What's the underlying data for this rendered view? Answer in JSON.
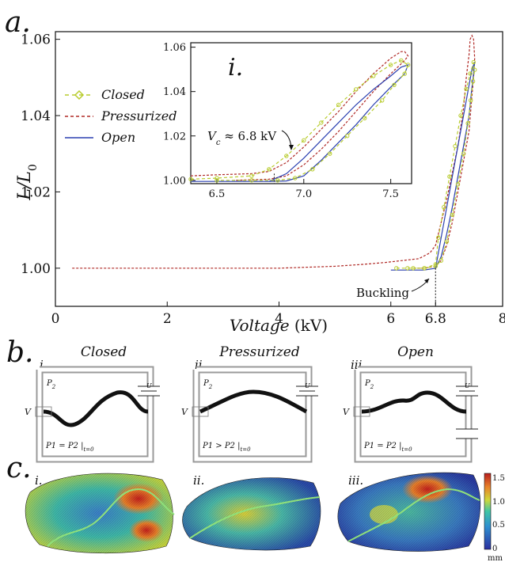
{
  "panel_a": {
    "label": "a.",
    "legend": [
      {
        "label": "Closed",
        "color": "#b8cc2e",
        "style": "diamond-dashed"
      },
      {
        "label": "Pressurized",
        "color": "#b02a26",
        "style": "dashed"
      },
      {
        "label": "Open",
        "color": "#2a3fb0",
        "style": "solid"
      }
    ],
    "annotation": "Buckling"
  },
  "inset": {
    "label": "i.",
    "annotation_var": "V",
    "annotation_sub": "c",
    "annotation_rest": " ≈ 6.8 kV"
  },
  "panel_b": {
    "label": "b.",
    "items": [
      {
        "numeral": "i.",
        "title": "Closed",
        "p_label": "P",
        "p_sub": "2",
        "v_label": "V",
        "cond_main": "P1 = P2",
        "cond_sub": "t=0",
        "valve": "U"
      },
      {
        "numeral": "ii.",
        "title": "Pressurized",
        "p_label": "P",
        "p_sub": "2",
        "v_label": "V",
        "cond_main": "P1 > P2",
        "cond_sub": "t=0",
        "valve": "U"
      },
      {
        "numeral": "iii.",
        "title": "Open",
        "p_label": "P",
        "p_sub": "2",
        "v_label": "V",
        "cond_main": "P1 = P2",
        "cond_sub": "t=0",
        "valve": "U"
      }
    ]
  },
  "panel_c": {
    "label": "c.",
    "numerals": [
      "i.",
      "ii.",
      "iii."
    ],
    "colorbar": {
      "ticks": [
        "1.5",
        "1.0",
        "0.5",
        "0"
      ],
      "unit": "mm"
    }
  },
  "chart_data": [
    {
      "type": "line",
      "xlabel_var": "Voltage",
      "xlabel_unit": " (kV)",
      "ylabel_var": "L/L",
      "ylabel_sub": "0",
      "xlim": [
        0,
        8
      ],
      "ylim": [
        0.99,
        1.062
      ],
      "xticks": [
        {
          "v": 0,
          "label": "0"
        },
        {
          "v": 2,
          "label": "2"
        },
        {
          "v": 4,
          "label": "4"
        },
        {
          "v": 6,
          "label": "6"
        },
        {
          "v": 6.8,
          "label": "6.8"
        },
        {
          "v": 8,
          "label": "8"
        }
      ],
      "yticks": [
        {
          "v": 1.0,
          "label": "1.00"
        },
        {
          "v": 1.02,
          "label": "1.02"
        },
        {
          "v": 1.04,
          "label": "1.04"
        },
        {
          "v": 1.06,
          "label": "1.06"
        }
      ],
      "series": [
        {
          "name": "Pressurized",
          "color": "#b02a26",
          "x": [
            0.3,
            1.0,
            2.0,
            3.0,
            4.0,
            5.0,
            5.5,
            5.9,
            6.2,
            6.5,
            6.7,
            6.8,
            6.9,
            7.0,
            7.1,
            7.2,
            7.3,
            7.35,
            7.4,
            7.42,
            7.45,
            7.48,
            7.5,
            7.48,
            7.45,
            7.4,
            7.3,
            7.2,
            7.1,
            7.0,
            6.9,
            6.8,
            6.6,
            6.4
          ],
          "y": [
            1.0,
            1.0,
            1.0,
            1.0,
            1.0,
            1.0005,
            1.001,
            1.0015,
            1.002,
            1.0025,
            1.004,
            1.006,
            1.012,
            1.018,
            1.025,
            1.032,
            1.042,
            1.05,
            1.056,
            1.06,
            1.061,
            1.06,
            1.055,
            1.05,
            1.045,
            1.036,
            1.028,
            1.02,
            1.012,
            1.006,
            1.002,
            1.0005,
            1.0,
            1.0
          ]
        },
        {
          "name": "Open",
          "color": "#2a3fb0",
          "x": [
            6.0,
            6.3,
            6.6,
            6.8,
            6.9,
            7.0,
            7.1,
            7.2,
            7.3,
            7.4,
            7.45,
            7.5,
            7.48,
            7.44,
            7.4,
            7.3,
            7.2,
            7.1,
            7.0,
            6.9,
            6.8,
            6.6,
            6.3,
            6.0
          ],
          "y": [
            0.9995,
            0.9995,
            0.9995,
            1.0,
            1.008,
            1.016,
            1.024,
            1.032,
            1.04,
            1.048,
            1.052,
            1.054,
            1.051,
            1.046,
            1.04,
            1.032,
            1.024,
            1.016,
            1.009,
            1.003,
            1.0,
            0.9995,
            0.9995,
            0.9995
          ]
        },
        {
          "name": "Closed",
          "color": "#b8cc2e",
          "x": [
            6.1,
            6.4,
            6.6,
            6.8,
            6.85,
            6.95,
            7.05,
            7.15,
            7.25,
            7.35,
            7.42,
            7.48,
            7.5,
            7.47,
            7.43,
            7.38,
            7.3,
            7.2,
            7.1,
            7.0,
            6.9,
            6.8,
            6.6,
            6.3
          ],
          "y": [
            1.0,
            1.0,
            1.0,
            1.001,
            1.008,
            1.016,
            1.024,
            1.032,
            1.04,
            1.047,
            1.051,
            1.054,
            1.052,
            1.049,
            1.044,
            1.038,
            1.03,
            1.022,
            1.014,
            1.007,
            1.002,
            1.0005,
            1.0,
            1.0
          ]
        }
      ]
    },
    {
      "type": "line",
      "xlim": [
        6.35,
        7.62
      ],
      "ylim": [
        0.9985,
        1.062
      ],
      "xticks": [
        {
          "v": 6.5,
          "label": "6.5"
        },
        {
          "v": 7.0,
          "label": "7.0"
        },
        {
          "v": 7.5,
          "label": "7.5"
        }
      ],
      "yticks": [
        {
          "v": 1.0,
          "label": "1.00"
        },
        {
          "v": 1.02,
          "label": "1.02"
        },
        {
          "v": 1.04,
          "label": "1.04"
        },
        {
          "v": 1.06,
          "label": "1.06"
        }
      ],
      "series": [
        {
          "name": "Pressurized",
          "color": "#b02a26",
          "x": [
            6.35,
            6.5,
            6.7,
            6.8,
            6.9,
            7.0,
            7.1,
            7.2,
            7.3,
            7.4,
            7.5,
            7.56,
            7.58,
            7.6,
            7.58,
            7.5,
            7.4,
            7.3,
            7.2,
            7.1,
            7.0,
            6.9,
            6.8,
            6.6
          ],
          "y": [
            1.002,
            1.0025,
            1.003,
            1.004,
            1.008,
            1.015,
            1.023,
            1.031,
            1.04,
            1.048,
            1.055,
            1.058,
            1.058,
            1.056,
            1.054,
            1.048,
            1.04,
            1.031,
            1.022,
            1.014,
            1.007,
            1.002,
            1.0005,
            1.0
          ]
        },
        {
          "name": "Open",
          "color": "#2a3fb0",
          "x": [
            6.35,
            6.6,
            6.8,
            6.9,
            7.0,
            7.1,
            7.2,
            7.3,
            7.4,
            7.5,
            7.56,
            7.6,
            7.58,
            7.5,
            7.4,
            7.3,
            7.2,
            7.1,
            7.0,
            6.9,
            6.8,
            6.6
          ],
          "y": [
            0.9995,
            0.9995,
            0.9995,
            1.003,
            1.01,
            1.018,
            1.026,
            1.034,
            1.041,
            1.047,
            1.051,
            1.052,
            1.048,
            1.042,
            1.034,
            1.025,
            1.017,
            1.009,
            1.002,
            0.9997,
            0.9995,
            0.9995
          ]
        },
        {
          "name": "Closed",
          "color": "#b8cc2e",
          "x": [
            6.35,
            6.5,
            6.7,
            6.8,
            6.9,
            7.0,
            7.1,
            7.2,
            7.3,
            7.4,
            7.5,
            7.56,
            7.6,
            7.58,
            7.52,
            7.45,
            7.35,
            7.25,
            7.15,
            7.05,
            6.95,
            6.85,
            6.7,
            6.5
          ],
          "y": [
            1.0005,
            1.001,
            1.002,
            1.005,
            1.011,
            1.018,
            1.026,
            1.034,
            1.041,
            1.047,
            1.052,
            1.054,
            1.052,
            1.048,
            1.043,
            1.036,
            1.028,
            1.02,
            1.012,
            1.005,
            1.001,
            1.0,
            1.0,
            1.0
          ]
        }
      ]
    }
  ]
}
